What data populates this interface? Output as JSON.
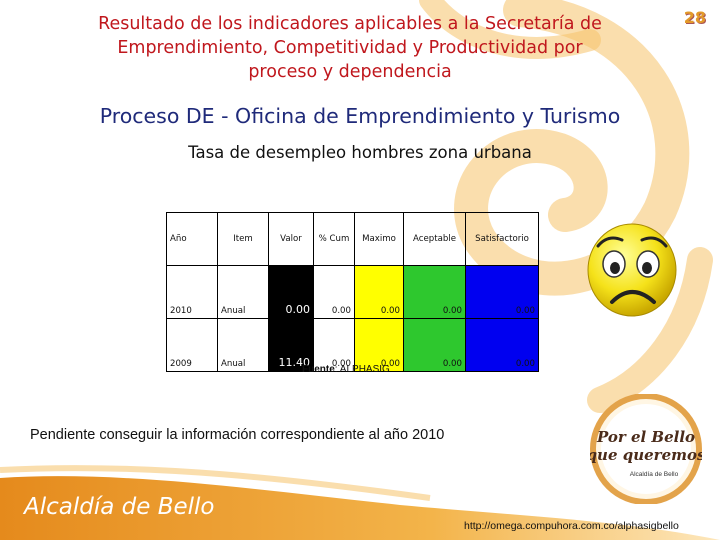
{
  "page_number": "28",
  "heading": {
    "line1": "Resultado de los indicadores aplicables a la Secretaría de",
    "line2": "Emprendimiento, Competitividad y Productividad  por",
    "line3": "proceso y dependencia"
  },
  "subtitle": "Proceso DE - Oficina de Emprendimiento y Turismo",
  "chart_title": "Tasa de desempleo hombres zona urbana",
  "table": {
    "headers": [
      "Año",
      "Item",
      "Valor",
      "% Cum",
      "Maximo",
      "Aceptable",
      "Satisfactorio"
    ],
    "rows": [
      [
        "2010",
        "Anual",
        "0.00",
        "0.00",
        "0.00",
        "0.00",
        "0.00"
      ],
      [
        "2009",
        "Anual",
        "11.40",
        "0.00",
        "0.00",
        "0.00",
        "0.00"
      ]
    ]
  },
  "colors": {
    "valor_bg": "#000000",
    "maximo_bg": "#ffff00",
    "aceptable_bg": "#2ec82e",
    "satisfactorio_bg": "#0000f0",
    "heading_red": "#c0171d",
    "subtitle_blue": "#1f2a7a",
    "swirl_orange": "#f2b24a"
  },
  "source": {
    "label": "Fuente",
    "value": ": ALPHASIG"
  },
  "note": "Pendiente conseguir la información correspondiente al año 2010",
  "brand": "Alcaldía de Bello",
  "logo": {
    "line1": "Por el Bello",
    "line2": "que queremos",
    "line3": "Alcaldía de Bello"
  },
  "url": "http://omega.compuhora.com.co/alphasigbello",
  "icons": [
    "sad-face-icon",
    "por-el-bello-logo"
  ]
}
